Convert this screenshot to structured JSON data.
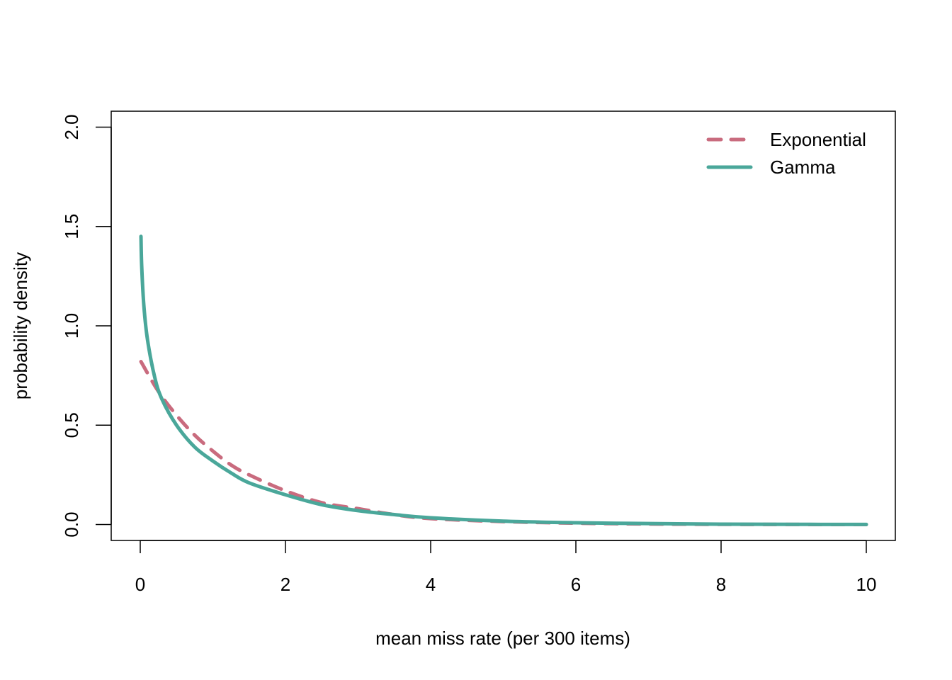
{
  "chart_data": {
    "type": "line",
    "title": "",
    "xlabel": "mean miss rate (per 300 items)",
    "ylabel": "probability density",
    "xlim": [
      -0.4,
      10.4
    ],
    "ylim": [
      -0.08,
      2.08
    ],
    "x_ticks": [
      0,
      2,
      4,
      6,
      8,
      10
    ],
    "x_tick_labels": [
      "0",
      "2",
      "4",
      "6",
      "8",
      "10"
    ],
    "y_ticks": [
      0.0,
      0.5,
      1.0,
      1.5,
      2.0
    ],
    "y_tick_labels": [
      "0.0",
      "0.5",
      "1.0",
      "1.5",
      "2.0"
    ],
    "grid": false,
    "legend_position": "top-right",
    "series": [
      {
        "name": "Exponential",
        "color": "#c96b7e",
        "dash": "dashed",
        "x": [
          0.01,
          0.25,
          0.5,
          0.75,
          1.0,
          1.25,
          1.5,
          2.0,
          2.5,
          3.0,
          3.5,
          4.0,
          5.0,
          6.0,
          7.0,
          8.0,
          9.0,
          10.0
        ],
        "y": [
          0.82,
          0.67,
          0.55,
          0.45,
          0.37,
          0.3,
          0.25,
          0.17,
          0.11,
          0.08,
          0.05,
          0.03,
          0.015,
          0.007,
          0.003,
          0.001,
          0.0005,
          0.0002
        ]
      },
      {
        "name": "Gamma",
        "color": "#4aa79a",
        "dash": "solid",
        "x": [
          0.01,
          0.02,
          0.05,
          0.1,
          0.2,
          0.3,
          0.5,
          0.75,
          1.0,
          1.25,
          1.5,
          2.0,
          2.5,
          3.0,
          3.5,
          4.0,
          5.0,
          6.0,
          7.0,
          8.0,
          9.0,
          10.0
        ],
        "y": [
          1.45,
          1.3,
          1.1,
          0.93,
          0.74,
          0.63,
          0.5,
          0.39,
          0.32,
          0.26,
          0.21,
          0.15,
          0.1,
          0.07,
          0.05,
          0.034,
          0.017,
          0.009,
          0.005,
          0.002,
          0.001,
          0.0005
        ]
      }
    ]
  }
}
